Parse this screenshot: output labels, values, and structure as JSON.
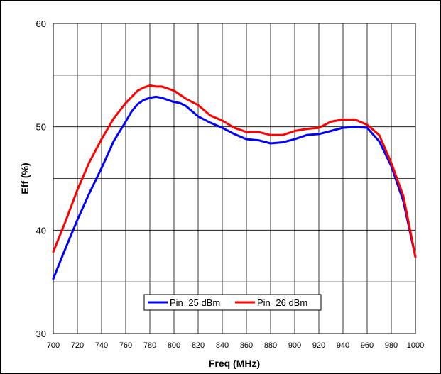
{
  "chart_data": {
    "type": "line",
    "xlabel": "Freq (MHz)",
    "ylabel": "Eff (%)",
    "xlim": [
      700,
      1000
    ],
    "ylim": [
      30,
      60
    ],
    "x_ticks": [
      "700",
      "720",
      "740",
      "760",
      "780",
      "800",
      "820",
      "840",
      "860",
      "880",
      "900",
      "920",
      "940",
      "960",
      "980",
      "1000"
    ],
    "y_ticks": [
      "30",
      "40",
      "50",
      "60"
    ],
    "grid": true,
    "legend_position": "bottom-center",
    "series": [
      {
        "name": "Pin=25 dBm",
        "color": "#0000ff",
        "x": [
          700,
          710,
          720,
          730,
          740,
          750,
          760,
          765,
          770,
          775,
          780,
          785,
          790,
          795,
          800,
          805,
          810,
          815,
          820,
          830,
          840,
          850,
          860,
          870,
          880,
          890,
          900,
          910,
          920,
          930,
          940,
          950,
          960,
          970,
          980,
          990,
          1000
        ],
        "y": [
          35.3,
          38.2,
          41.0,
          43.6,
          46.0,
          48.6,
          50.5,
          51.5,
          52.2,
          52.6,
          52.8,
          52.9,
          52.8,
          52.6,
          52.4,
          52.3,
          52.0,
          51.5,
          51.0,
          50.4,
          49.9,
          49.3,
          48.8,
          48.7,
          48.4,
          48.5,
          48.8,
          49.2,
          49.3,
          49.6,
          49.9,
          50.0,
          49.9,
          48.6,
          46.2,
          42.8,
          37.4
        ]
      },
      {
        "name": "Pin=26 dBm",
        "color": "#ff0000",
        "x": [
          700,
          710,
          720,
          730,
          740,
          750,
          760,
          770,
          775,
          780,
          785,
          790,
          795,
          800,
          810,
          820,
          830,
          840,
          850,
          860,
          870,
          880,
          890,
          900,
          910,
          920,
          930,
          940,
          950,
          960,
          970,
          980,
          990,
          1000
        ],
        "y": [
          37.9,
          40.8,
          43.9,
          46.6,
          48.8,
          50.8,
          52.3,
          53.5,
          53.8,
          54.0,
          53.9,
          53.9,
          53.7,
          53.5,
          52.7,
          52.1,
          51.1,
          50.6,
          49.9,
          49.5,
          49.5,
          49.2,
          49.2,
          49.6,
          49.8,
          49.9,
          50.5,
          50.7,
          50.7,
          50.2,
          49.2,
          46.5,
          43.3,
          37.4
        ]
      }
    ]
  }
}
